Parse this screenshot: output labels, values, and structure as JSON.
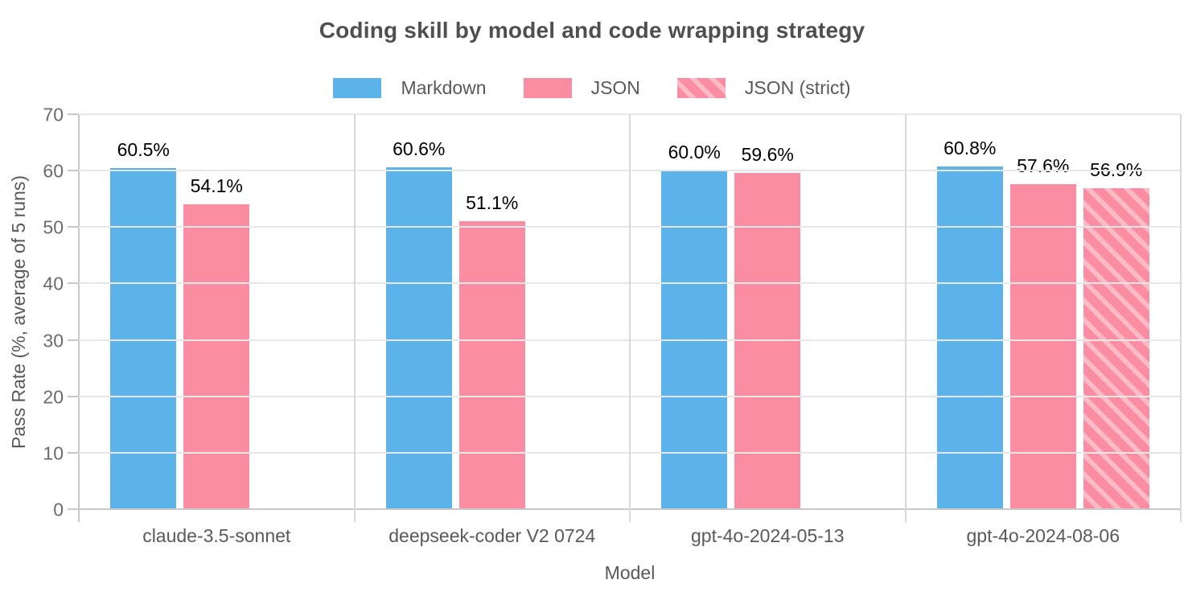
{
  "colors": {
    "markdown_blue": "#5cb3e9",
    "json_pink": "#fb8da3",
    "json_stripe_light": "#fcbac7",
    "grid": "#e7e7e7",
    "axis": "#c8c8c8",
    "divider": "#d9d9d9",
    "title_text": "#4f4f4f",
    "axis_text": "#595959",
    "tick_text": "#6b6b6b",
    "value_text": "#000000"
  },
  "chart_data": {
    "type": "bar",
    "title": "Coding skill by model and code wrapping strategy",
    "xlabel": "Model",
    "ylabel": "Pass Rate (%, average of 5 runs)",
    "ylim": [
      0,
      70
    ],
    "yticks": [
      0,
      10,
      20,
      30,
      40,
      50,
      60,
      70
    ],
    "grid": true,
    "legend_position": "top-center",
    "categories": [
      "claude-3.5-sonnet",
      "deepseek-coder V2 0724",
      "gpt-4o-2024-05-13",
      "gpt-4o-2024-08-06"
    ],
    "series": [
      {
        "name": "Markdown",
        "key": "markdown",
        "pattern": "solid",
        "color": "#5cb3e9",
        "values": [
          60.5,
          60.6,
          60.0,
          60.8
        ],
        "labels": [
          "60.5%",
          "60.6%",
          "60.0%",
          "60.8%"
        ]
      },
      {
        "name": "JSON",
        "key": "json",
        "pattern": "solid",
        "color": "#fb8da3",
        "values": [
          54.1,
          51.1,
          59.6,
          57.6
        ],
        "labels": [
          "54.1%",
          "51.1%",
          "59.6%",
          "57.6%"
        ]
      },
      {
        "name": "JSON (strict)",
        "key": "json-strict",
        "pattern": "diagonal-stripes",
        "color": "#fb8da3",
        "stripe_color": "#fcbac7",
        "values": [
          null,
          null,
          null,
          56.9
        ],
        "labels": [
          null,
          null,
          null,
          "56.9%"
        ]
      }
    ]
  }
}
